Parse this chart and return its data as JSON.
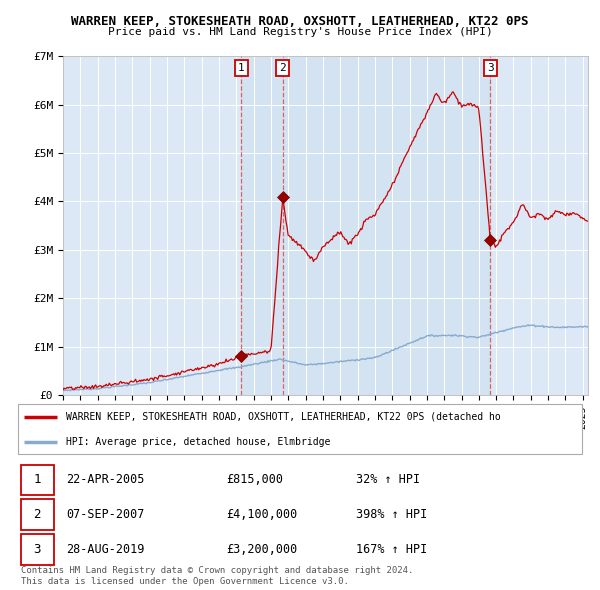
{
  "title": "WARREN KEEP, STOKESHEATH ROAD, OXSHOTT, LEATHERHEAD, KT22 0PS",
  "subtitle": "Price paid vs. HM Land Registry's House Price Index (HPI)",
  "ylim": [
    0,
    7000000
  ],
  "yticks": [
    0,
    1000000,
    2000000,
    3000000,
    4000000,
    5000000,
    6000000,
    7000000
  ],
  "ytick_labels": [
    "£0",
    "£1M",
    "£2M",
    "£3M",
    "£4M",
    "£5M",
    "£6M",
    "£7M"
  ],
  "year_start": 1995,
  "year_end": 2025,
  "plot_bg": "#dce8f5",
  "shade_color": "#ccdcee",
  "red_color": "#cc0000",
  "blue_color": "#88aacc",
  "sale1_year": 2005.3,
  "sale1_price": 815000,
  "sale2_year": 2007.68,
  "sale2_price": 4100000,
  "sale3_year": 2019.66,
  "sale3_price": 3200000,
  "legend_label_red": "WARREN KEEP, STOKESHEATH ROAD, OXSHOTT, LEATHERHEAD, KT22 0PS (detached ho",
  "legend_label_blue": "HPI: Average price, detached house, Elmbridge",
  "table_row1": [
    "1",
    "22-APR-2005",
    "£815,000",
    "32% ↑ HPI"
  ],
  "table_row2": [
    "2",
    "07-SEP-2007",
    "£4,100,000",
    "398% ↑ HPI"
  ],
  "table_row3": [
    "3",
    "28-AUG-2019",
    "£3,200,000",
    "167% ↑ HPI"
  ],
  "footnote1": "Contains HM Land Registry data © Crown copyright and database right 2024.",
  "footnote2": "This data is licensed under the Open Government Licence v3.0."
}
